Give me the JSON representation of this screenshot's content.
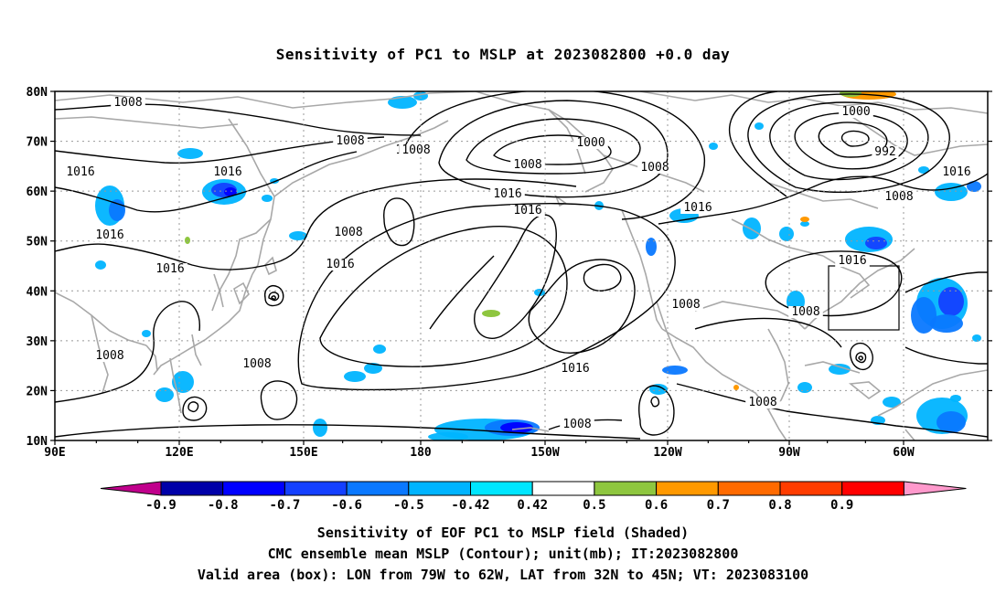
{
  "title": "Sensitivity of PC1 to MSLP at 2023082800 +0.0 day",
  "map": {
    "lat_ticks": [
      "80N",
      "70N",
      "60N",
      "50N",
      "40N",
      "30N",
      "20N",
      "10N"
    ],
    "lon_ticks": [
      "90E",
      "120E",
      "150E",
      "180",
      "150W",
      "120W",
      "90W",
      "60W"
    ],
    "valid_box": {
      "lon_range": [
        "79W",
        "62W"
      ],
      "lat_range": [
        "32N",
        "45N"
      ]
    },
    "contour_labels": [
      {
        "text": "1008",
        "name": "contour-label-1008-north-pacific-edge"
      },
      {
        "text": "1008",
        "name": "contour-label-1008-west-siberia"
      },
      {
        "text": "1008",
        "name": "contour-label-1008-east-siberia"
      },
      {
        "text": "1008",
        "name": "contour-label-1008-bering"
      },
      {
        "text": "1000",
        "name": "contour-label-1000-alaska-low"
      },
      {
        "text": "1008",
        "name": "contour-label-1008-alaska"
      },
      {
        "text": "1008",
        "name": "contour-label-1008-canada"
      },
      {
        "text": "1000",
        "name": "contour-label-1000-atlantic-low"
      },
      {
        "text": "992",
        "name": "contour-label-992-atlantic-low"
      },
      {
        "text": "1008",
        "name": "contour-label-1008-atlantic"
      },
      {
        "text": "1016",
        "name": "contour-label-1016-atlantic"
      },
      {
        "text": "1016",
        "name": "contour-label-1016-central-asia"
      },
      {
        "text": "1016",
        "name": "contour-label-1016-mongolia"
      },
      {
        "text": "1016",
        "name": "contour-label-1016-gulf-alaska"
      },
      {
        "text": "1016",
        "name": "contour-label-1016-pacific-high-north"
      },
      {
        "text": "1016",
        "name": "contour-label-1016-canada-west"
      },
      {
        "text": "1016",
        "name": "contour-label-1016-tibet"
      },
      {
        "text": "1016",
        "name": "contour-label-1016-china"
      },
      {
        "text": "1008",
        "name": "contour-label-1008-kamchatka"
      },
      {
        "text": "1016",
        "name": "contour-label-1016-pacific-high"
      },
      {
        "text": "1016",
        "name": "contour-label-1016-eastern-us"
      },
      {
        "text": "1008",
        "name": "contour-label-1008-mexico"
      },
      {
        "text": "1008",
        "name": "contour-label-1008-southeast-us"
      },
      {
        "text": "1008",
        "name": "contour-label-1008-india"
      },
      {
        "text": "1008",
        "name": "contour-label-1008-west-pacific"
      },
      {
        "text": "1016",
        "name": "contour-label-1016-subtropical-pacific"
      },
      {
        "text": "1008",
        "name": "contour-label-1008-central-america"
      },
      {
        "text": "1008",
        "name": "contour-label-1008-tropical-pacific"
      }
    ]
  },
  "colorbar": {
    "labels": [
      "-0.9",
      "-0.8",
      "-0.7",
      "-0.6",
      "-0.5",
      "-0.42",
      "0.42",
      "0.5",
      "0.6",
      "0.7",
      "0.8",
      "0.9"
    ],
    "colors": [
      "#c0008c",
      "#0000a8",
      "#0000ff",
      "#1440ff",
      "#0a78ff",
      "#00b4ff",
      "#00e6ff",
      "#ffffff",
      "#8ec63f",
      "#ff9900",
      "#ff6a00",
      "#ff3c00",
      "#ff0000",
      "#ff99cc"
    ]
  },
  "captions": {
    "line1": "Sensitivity of EOF PC1 to MSLP field (Shaded)",
    "line2": "CMC ensemble mean MSLP (Contour); unit(mb); IT:2023082800",
    "line3": "Valid area (box): LON from 79W to 62W, LAT from 32N to 45N; VT: 2023083100"
  }
}
